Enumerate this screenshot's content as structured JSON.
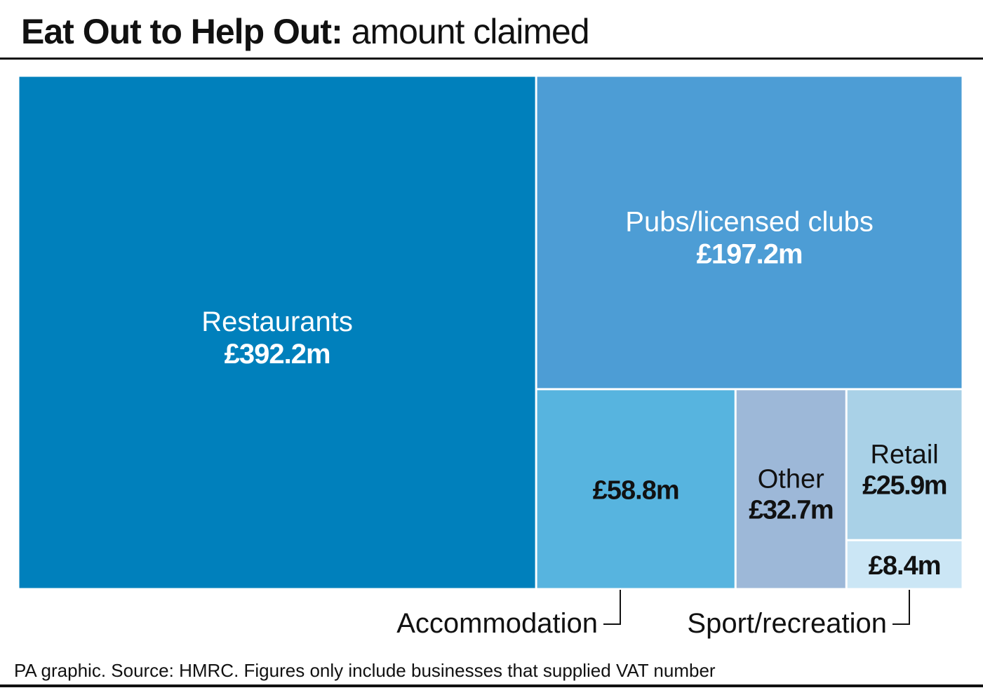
{
  "header": {
    "title_bold": "Eat Out to Help Out:",
    "title_regular": "amount claimed"
  },
  "footer": {
    "source": "PA graphic. Source: HMRC. Figures only include businesses that supplied VAT number"
  },
  "chart_data": {
    "type": "treemap",
    "title": "Eat Out to Help Out: amount claimed",
    "unit": "£m",
    "items": [
      {
        "name": "Restaurants",
        "value": 392.2,
        "label": "£392.2m",
        "color": "#0080bc",
        "text_color": "#ffffff"
      },
      {
        "name": "Pubs/licensed clubs",
        "value": 197.2,
        "label": "£197.2m",
        "color": "#4d9dd5",
        "text_color": "#ffffff"
      },
      {
        "name": "Accommodation",
        "value": 58.8,
        "label": "£58.8m",
        "color": "#57b4df",
        "text_color": "#111111"
      },
      {
        "name": "Other",
        "value": 32.7,
        "label": "£32.7m",
        "color": "#9db8d8",
        "text_color": "#111111"
      },
      {
        "name": "Retail",
        "value": 25.9,
        "label": "£25.9m",
        "color": "#a9d1e7",
        "text_color": "#111111"
      },
      {
        "name": "Sport/recreation",
        "value": 8.4,
        "label": "£8.4m",
        "color": "#cbe6f5",
        "text_color": "#111111"
      }
    ]
  }
}
